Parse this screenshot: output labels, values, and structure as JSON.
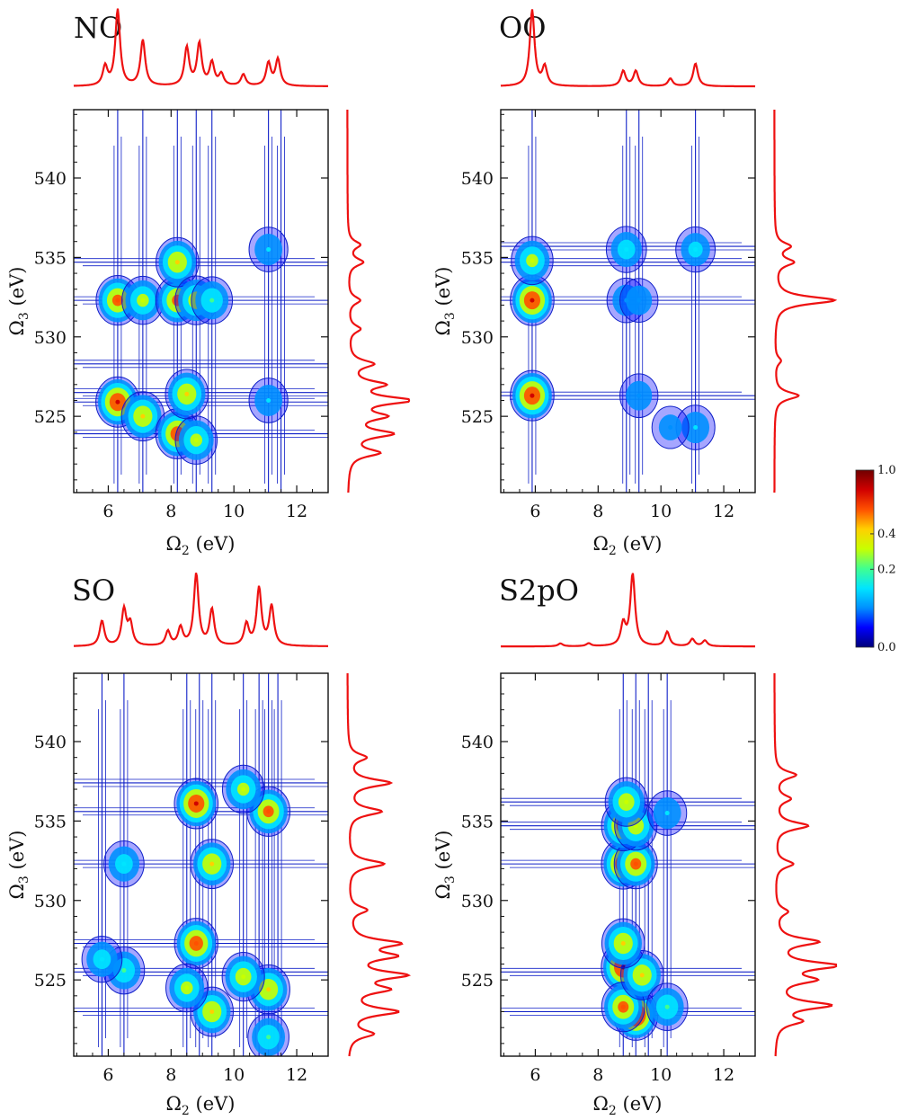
{
  "colors": {
    "spectrum_line": "#ee1111",
    "contour_low": "#1020c8",
    "frame": "#111111",
    "colormap": [
      "#00007a",
      "#0000ff",
      "#0090ff",
      "#00e5ff",
      "#40ff90",
      "#c8ff00",
      "#ffd000",
      "#ff5000",
      "#d00000",
      "#700000"
    ]
  },
  "colorbar": {
    "ticks": [
      {
        "value": 1.0,
        "label": "1.0"
      },
      {
        "value": 0.4,
        "label": "0.4"
      },
      {
        "value": 0.2,
        "label": "0.2"
      },
      {
        "value": 0.0,
        "label": "0.0"
      }
    ]
  },
  "chart_data": [
    {
      "type": "heatmap",
      "title": "NO",
      "xlabel": "Ω2 (eV)",
      "ylabel": "Ω3 (eV)",
      "xlim": [
        4.9,
        13.0
      ],
      "ylim": [
        520.2,
        544.3
      ],
      "xticks": [
        6,
        8,
        10,
        12
      ],
      "yticks": [
        525,
        530,
        535,
        540
      ],
      "x_columns": [
        6.3,
        7.1,
        8.2,
        8.8,
        9.3,
        11.1,
        11.5
      ],
      "y_rows": [
        523.9,
        525.9,
        526.5,
        528.3,
        532.3,
        534.7
      ],
      "peaks": [
        {
          "x": 6.3,
          "y": 525.9,
          "amp": 0.6
        },
        {
          "x": 6.3,
          "y": 532.3,
          "amp": 0.5
        },
        {
          "x": 7.1,
          "y": 525.0,
          "amp": 0.45
        },
        {
          "x": 7.1,
          "y": 532.3,
          "amp": 0.35
        },
        {
          "x": 8.2,
          "y": 523.9,
          "amp": 0.55
        },
        {
          "x": 8.2,
          "y": 532.3,
          "amp": 0.5
        },
        {
          "x": 8.2,
          "y": 534.7,
          "amp": 0.45
        },
        {
          "x": 8.5,
          "y": 526.4,
          "amp": 0.45
        },
        {
          "x": 8.8,
          "y": 532.3,
          "amp": 0.4
        },
        {
          "x": 8.8,
          "y": 523.5,
          "amp": 0.35
        },
        {
          "x": 9.3,
          "y": 532.3,
          "amp": 0.3
        },
        {
          "x": 11.1,
          "y": 535.5,
          "amp": 0.2
        },
        {
          "x": 11.1,
          "y": 526.0,
          "amp": 0.2
        }
      ],
      "x_spectrum": [
        {
          "x": 5.9,
          "amp": 0.25
        },
        {
          "x": 6.3,
          "amp": 1.0
        },
        {
          "x": 7.1,
          "amp": 0.6
        },
        {
          "x": 8.5,
          "amp": 0.5
        },
        {
          "x": 8.9,
          "amp": 0.55
        },
        {
          "x": 9.3,
          "amp": 0.3
        },
        {
          "x": 9.6,
          "amp": 0.15
        },
        {
          "x": 10.3,
          "amp": 0.15
        },
        {
          "x": 11.1,
          "amp": 0.3
        },
        {
          "x": 11.4,
          "amp": 0.35
        }
      ],
      "y_spectrum": [
        {
          "y": 522.7,
          "amp": 0.5
        },
        {
          "y": 523.9,
          "amp": 0.7
        },
        {
          "y": 525.0,
          "amp": 0.55
        },
        {
          "y": 526.0,
          "amp": 1.0
        },
        {
          "y": 527.0,
          "amp": 0.55
        },
        {
          "y": 528.3,
          "amp": 0.4
        },
        {
          "y": 530.5,
          "amp": 0.2
        },
        {
          "y": 532.3,
          "amp": 0.2
        },
        {
          "y": 534.7,
          "amp": 0.25
        },
        {
          "y": 535.8,
          "amp": 0.2
        }
      ]
    },
    {
      "type": "heatmap",
      "title": "OO",
      "xlabel": "Ω2 (eV)",
      "ylabel": "Ω3 (eV)",
      "xlim": [
        4.9,
        13.0
      ],
      "ylim": [
        520.2,
        544.3
      ],
      "xticks": [
        6,
        8,
        10,
        12
      ],
      "yticks": [
        525,
        530,
        535,
        540
      ],
      "x_columns": [
        5.9,
        8.9,
        9.3,
        11.1
      ],
      "y_rows": [
        526.3,
        532.3,
        534.7,
        535.7
      ],
      "peaks": [
        {
          "x": 5.9,
          "y": 532.3,
          "amp": 0.6
        },
        {
          "x": 5.9,
          "y": 526.3,
          "amp": 0.6
        },
        {
          "x": 5.9,
          "y": 534.8,
          "amp": 0.35
        },
        {
          "x": 8.9,
          "y": 535.5,
          "amp": 0.25
        },
        {
          "x": 8.9,
          "y": 532.3,
          "amp": 0.2
        },
        {
          "x": 9.3,
          "y": 532.3,
          "amp": 0.18
        },
        {
          "x": 11.1,
          "y": 535.5,
          "amp": 0.22
        },
        {
          "x": 11.1,
          "y": 524.3,
          "amp": 0.2
        },
        {
          "x": 9.3,
          "y": 526.3,
          "amp": 0.18
        },
        {
          "x": 10.3,
          "y": 524.3,
          "amp": 0.15
        }
      ],
      "x_spectrum": [
        {
          "x": 5.9,
          "amp": 1.0
        },
        {
          "x": 6.3,
          "amp": 0.25
        },
        {
          "x": 8.8,
          "amp": 0.2
        },
        {
          "x": 9.2,
          "amp": 0.2
        },
        {
          "x": 10.3,
          "amp": 0.1
        },
        {
          "x": 11.1,
          "amp": 0.3
        }
      ],
      "y_spectrum": [
        {
          "y": 526.3,
          "amp": 0.4
        },
        {
          "y": 528.5,
          "amp": 0.1
        },
        {
          "y": 532.3,
          "amp": 1.0
        },
        {
          "y": 534.7,
          "amp": 0.3
        },
        {
          "y": 535.7,
          "amp": 0.25
        }
      ]
    },
    {
      "type": "heatmap",
      "title": "SO",
      "xlabel": "Ω2 (eV)",
      "ylabel": "Ω3 (eV)",
      "xlim": [
        4.9,
        13.0
      ],
      "ylim": [
        520.2,
        544.3
      ],
      "xticks": [
        6,
        8,
        10,
        12
      ],
      "yticks": [
        525,
        530,
        535,
        540
      ],
      "x_columns": [
        5.8,
        6.5,
        8.5,
        8.9,
        9.3,
        10.3,
        10.8,
        11.1,
        11.4
      ],
      "y_rows": [
        523.0,
        525.5,
        527.3,
        532.3,
        535.6,
        537.4
      ],
      "peaks": [
        {
          "x": 8.8,
          "y": 536.1,
          "amp": 0.6
        },
        {
          "x": 8.8,
          "y": 527.3,
          "amp": 0.55
        },
        {
          "x": 9.3,
          "y": 532.3,
          "amp": 0.45
        },
        {
          "x": 9.3,
          "y": 523.0,
          "amp": 0.45
        },
        {
          "x": 11.1,
          "y": 535.6,
          "amp": 0.5
        },
        {
          "x": 11.1,
          "y": 524.4,
          "amp": 0.45
        },
        {
          "x": 10.3,
          "y": 525.2,
          "amp": 0.4
        },
        {
          "x": 6.5,
          "y": 525.6,
          "amp": 0.3
        },
        {
          "x": 6.5,
          "y": 532.3,
          "amp": 0.25
        },
        {
          "x": 5.8,
          "y": 526.3,
          "amp": 0.25
        },
        {
          "x": 10.3,
          "y": 537.0,
          "amp": 0.35
        },
        {
          "x": 11.1,
          "y": 521.4,
          "amp": 0.3
        },
        {
          "x": 8.5,
          "y": 524.5,
          "amp": 0.35
        }
      ],
      "x_spectrum": [
        {
          "x": 5.8,
          "amp": 0.35
        },
        {
          "x": 6.5,
          "amp": 0.5
        },
        {
          "x": 6.7,
          "amp": 0.3
        },
        {
          "x": 7.9,
          "amp": 0.2
        },
        {
          "x": 8.3,
          "amp": 0.25
        },
        {
          "x": 8.8,
          "amp": 1.0
        },
        {
          "x": 9.3,
          "amp": 0.5
        },
        {
          "x": 10.4,
          "amp": 0.3
        },
        {
          "x": 10.8,
          "amp": 0.8
        },
        {
          "x": 11.2,
          "amp": 0.55
        }
      ],
      "y_spectrum": [
        {
          "y": 521.6,
          "amp": 0.4
        },
        {
          "y": 523.0,
          "amp": 0.8
        },
        {
          "y": 524.4,
          "amp": 0.6
        },
        {
          "y": 525.3,
          "amp": 0.9
        },
        {
          "y": 526.5,
          "amp": 0.7
        },
        {
          "y": 527.3,
          "amp": 0.8
        },
        {
          "y": 529.4,
          "amp": 0.3
        },
        {
          "y": 532.3,
          "amp": 0.6
        },
        {
          "y": 535.6,
          "amp": 0.55
        },
        {
          "y": 537.4,
          "amp": 0.7
        },
        {
          "y": 539.0,
          "amp": 0.3
        }
      ]
    },
    {
      "type": "heatmap",
      "title": "S2pO",
      "xlabel": "Ω2 (eV)",
      "ylabel": "Ω3 (eV)",
      "xlim": [
        4.9,
        13.0
      ],
      "ylim": [
        520.2,
        544.3
      ],
      "xticks": [
        6,
        8,
        10,
        12
      ],
      "yticks": [
        525,
        530,
        535,
        540
      ],
      "x_columns": [
        8.8,
        9.2,
        9.6,
        10.2
      ],
      "y_rows": [
        523.0,
        525.5,
        532.3,
        534.7,
        536.2
      ],
      "peaks": [
        {
          "x": 8.8,
          "y": 532.3,
          "amp": 0.6
        },
        {
          "x": 9.2,
          "y": 532.3,
          "amp": 0.5
        },
        {
          "x": 8.8,
          "y": 534.7,
          "amp": 0.55
        },
        {
          "x": 9.2,
          "y": 534.7,
          "amp": 0.4
        },
        {
          "x": 8.9,
          "y": 536.2,
          "amp": 0.4
        },
        {
          "x": 8.8,
          "y": 525.8,
          "amp": 0.65
        },
        {
          "x": 9.2,
          "y": 522.8,
          "amp": 0.7
        },
        {
          "x": 8.8,
          "y": 523.3,
          "amp": 0.5
        },
        {
          "x": 9.4,
          "y": 525.3,
          "amp": 0.45
        },
        {
          "x": 8.8,
          "y": 527.3,
          "amp": 0.45
        },
        {
          "x": 10.2,
          "y": 523.3,
          "amp": 0.3
        },
        {
          "x": 10.2,
          "y": 535.5,
          "amp": 0.2
        }
      ],
      "x_spectrum": [
        {
          "x": 6.8,
          "amp": 0.04
        },
        {
          "x": 7.7,
          "amp": 0.04
        },
        {
          "x": 8.8,
          "amp": 0.3
        },
        {
          "x": 9.1,
          "amp": 1.0
        },
        {
          "x": 10.2,
          "amp": 0.2
        },
        {
          "x": 11.0,
          "amp": 0.1
        },
        {
          "x": 11.4,
          "amp": 0.08
        }
      ],
      "y_spectrum": [
        {
          "y": 522.4,
          "amp": 0.4
        },
        {
          "y": 523.4,
          "amp": 0.9
        },
        {
          "y": 525.0,
          "amp": 0.6
        },
        {
          "y": 525.9,
          "amp": 1.0
        },
        {
          "y": 527.4,
          "amp": 0.7
        },
        {
          "y": 529.3,
          "amp": 0.2
        },
        {
          "y": 532.3,
          "amp": 0.3
        },
        {
          "y": 534.7,
          "amp": 0.55
        },
        {
          "y": 536.4,
          "amp": 0.25
        },
        {
          "y": 537.9,
          "amp": 0.35
        }
      ]
    }
  ]
}
